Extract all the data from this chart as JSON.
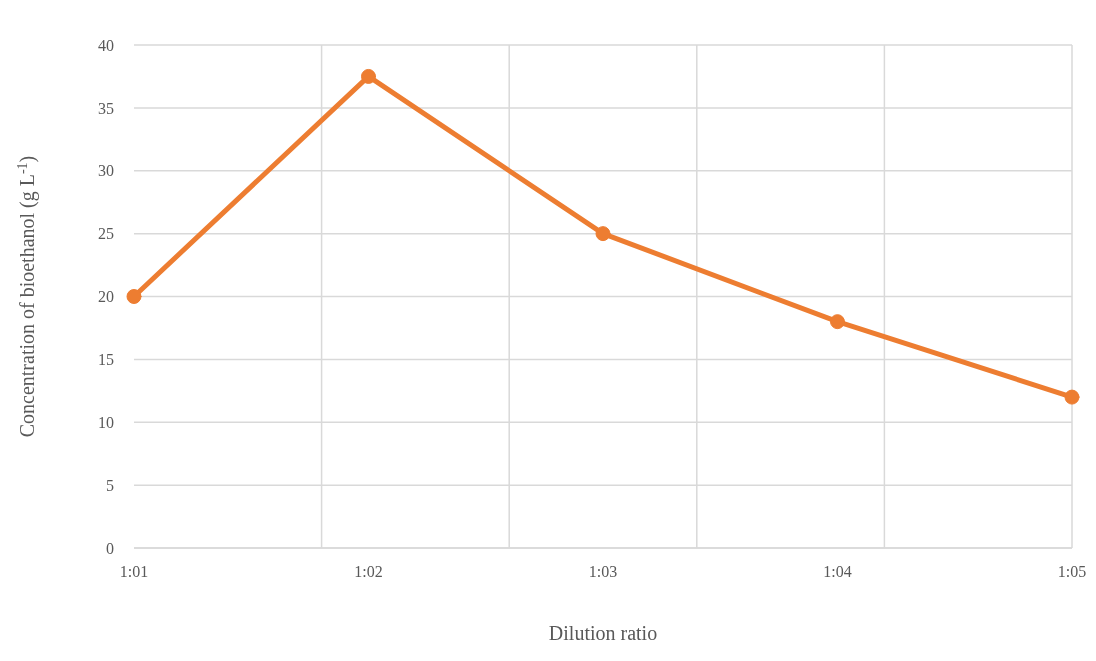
{
  "chart_data": {
    "type": "line",
    "xlabel": "Dilution ratio",
    "ylabel": "Concentration of  bioethanol (g L$^{-1}$)",
    "categories": [
      "1:01",
      "1:02",
      "1:03",
      "1:04",
      "1:05"
    ],
    "series": [
      {
        "color": "#ed7d31",
        "values": [
          20,
          37.5,
          25,
          18,
          12
        ]
      }
    ],
    "ylim": [
      0,
      40
    ],
    "yticks": [
      0,
      5,
      10,
      15,
      20,
      25,
      30,
      35,
      40
    ],
    "grid": true,
    "marker": "circle",
    "line_style": "solid",
    "legend": false
  }
}
